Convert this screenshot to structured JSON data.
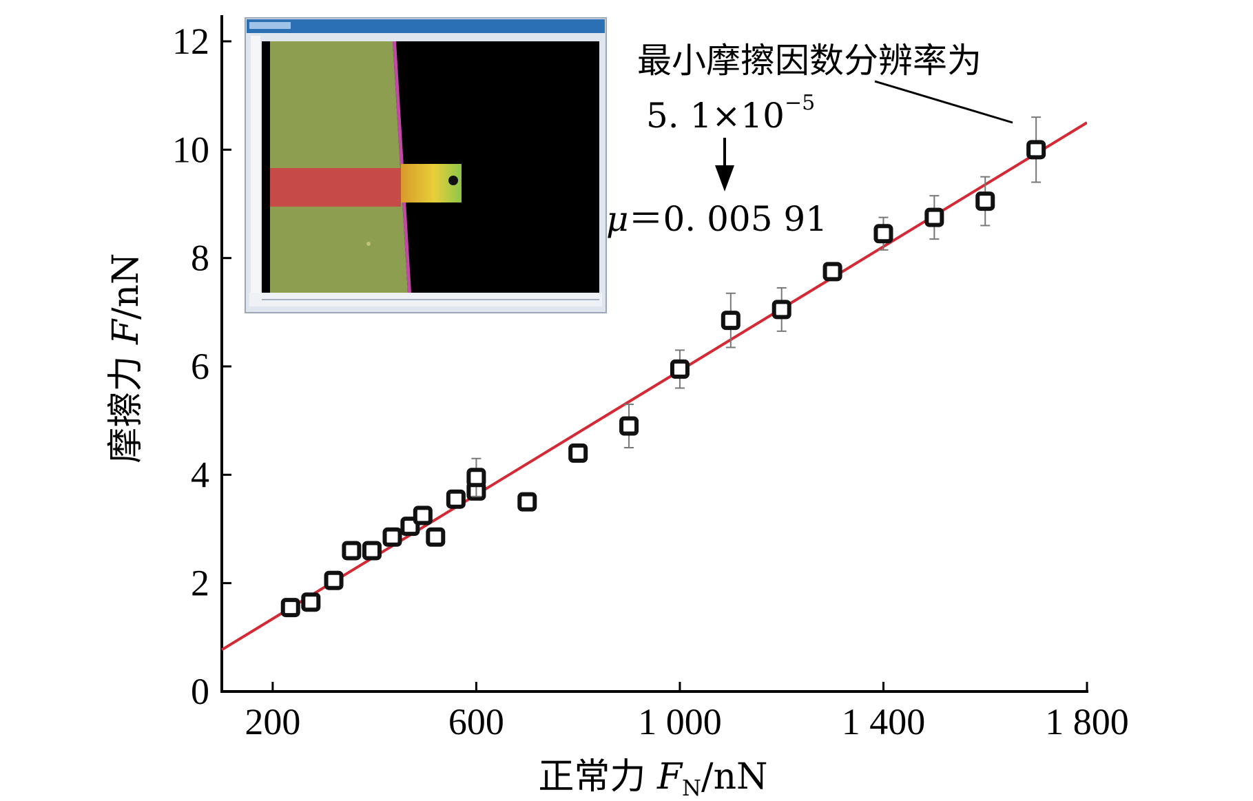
{
  "chart_data": {
    "type": "scatter",
    "xlabel": {
      "main": "正常力 ",
      "var": "F",
      "sub": "N",
      "unit": "/nN"
    },
    "ylabel": {
      "main": "摩擦力 ",
      "var": "F",
      "unit": "/nN"
    },
    "xlim": [
      100,
      1800
    ],
    "ylim": [
      0,
      12
    ],
    "xticks": [
      200,
      600,
      1000,
      1400,
      1800
    ],
    "xtick_labels": [
      "200",
      "600",
      "1 000",
      "1 400",
      "1 800"
    ],
    "yticks": [
      0,
      2,
      4,
      6,
      8,
      10,
      12
    ],
    "ytick_labels": [
      "0",
      "2",
      "4",
      "6",
      "8",
      "10",
      "12"
    ],
    "series": [
      {
        "marker": "open-square",
        "color": "#111111",
        "x": [
          235,
          275,
          320,
          355,
          395,
          435,
          470,
          495,
          520,
          560,
          600,
          600,
          700,
          800,
          900,
          1000,
          1100,
          1200,
          1300,
          1400,
          1500,
          1600,
          1700
        ],
        "y": [
          1.55,
          1.65,
          2.05,
          2.6,
          2.6,
          2.85,
          3.05,
          3.25,
          2.85,
          3.55,
          3.7,
          3.95,
          3.5,
          4.4,
          4.9,
          5.95,
          6.85,
          7.05,
          7.75,
          8.45,
          8.75,
          9.05,
          10.0
        ],
        "err": [
          0.1,
          0.1,
          0.1,
          0.1,
          0.1,
          0.1,
          0.1,
          0.15,
          0.1,
          0.15,
          0.1,
          0.35,
          0.1,
          0.1,
          0.4,
          0.35,
          0.5,
          0.4,
          0.15,
          0.3,
          0.4,
          0.45,
          0.6
        ]
      }
    ],
    "fit_line": {
      "color": "#d42a35",
      "x": [
        100,
        1800
      ],
      "y": [
        0.77,
        10.5
      ]
    },
    "annotations": {
      "resolution_label": "最小摩擦因数分辨率为",
      "resolution_value": "5. 1×10",
      "resolution_exp": "−5",
      "mu_symbol": "μ",
      "mu_value": "＝0. 005 91"
    },
    "inset": {
      "image": "optical-micrograph-of-cantilever-tip"
    },
    "grid": false,
    "legend": "none"
  }
}
